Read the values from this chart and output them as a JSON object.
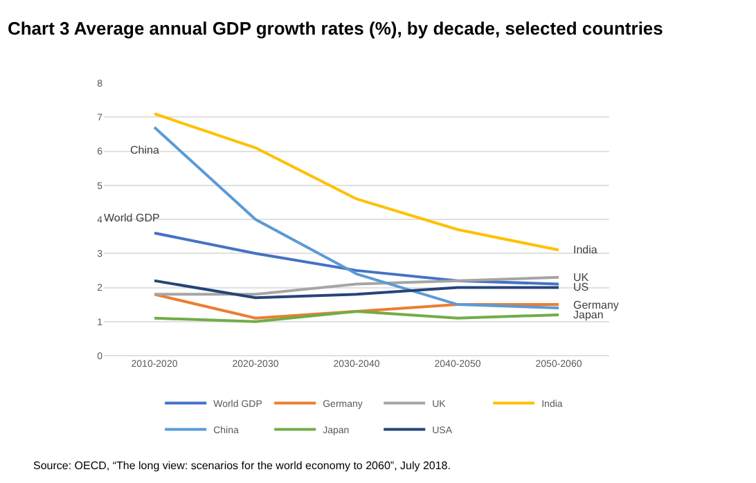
{
  "chart_data": {
    "type": "line",
    "title": "Chart 3 Average annual GDP growth rates (%), by decade, selected countries",
    "categories": [
      "2010-2020",
      "2020-2030",
      "2030-2040",
      "2040-2050",
      "2050-2060"
    ],
    "series": [
      {
        "name": "World GDP",
        "color": "#4472c4",
        "values": [
          3.6,
          3.0,
          2.5,
          2.2,
          2.1
        ]
      },
      {
        "name": "Germany",
        "color": "#ed7d31",
        "values": [
          1.8,
          1.1,
          1.3,
          1.5,
          1.5
        ]
      },
      {
        "name": "UK",
        "color": "#a5a5a5",
        "values": [
          1.8,
          1.8,
          2.1,
          2.2,
          2.3
        ]
      },
      {
        "name": "India",
        "color": "#ffc000",
        "values": [
          7.1,
          6.1,
          4.6,
          3.7,
          3.1
        ]
      },
      {
        "name": "China",
        "color": "#5b9bd5",
        "values": [
          6.7,
          4.0,
          2.4,
          1.5,
          1.4
        ]
      },
      {
        "name": "Japan",
        "color": "#70ad47",
        "values": [
          1.1,
          1.0,
          1.3,
          1.1,
          1.2
        ]
      },
      {
        "name": "USA",
        "color": "#264478",
        "values": [
          2.2,
          1.7,
          1.8,
          2.0,
          2.0
        ]
      }
    ],
    "annotations": [
      {
        "text": "China",
        "x": "2010-2020",
        "y": 6.7
      },
      {
        "text": "World GDP",
        "x": "2010-2020",
        "y": 3.6
      },
      {
        "text": "India",
        "x": "2050-2060",
        "y": 3.1
      },
      {
        "text": "UK",
        "x": "2050-2060",
        "y": 2.3
      },
      {
        "text": "US",
        "x": "2050-2060",
        "y": 2.0
      },
      {
        "text": "Germany",
        "x": "2050-2060",
        "y": 1.5
      },
      {
        "text": "Japan",
        "x": "2050-2060",
        "y": 1.2
      },
      "Source: OECD, “The long view: scenarios for the world economy to 2060”, July 2018."
    ],
    "ylim": [
      0,
      8
    ],
    "yticks": [
      0,
      1,
      2,
      3,
      4,
      5,
      6,
      7,
      8
    ],
    "grid": "y",
    "legend": "bottom",
    "marker": "none",
    "line_style": "solid"
  }
}
